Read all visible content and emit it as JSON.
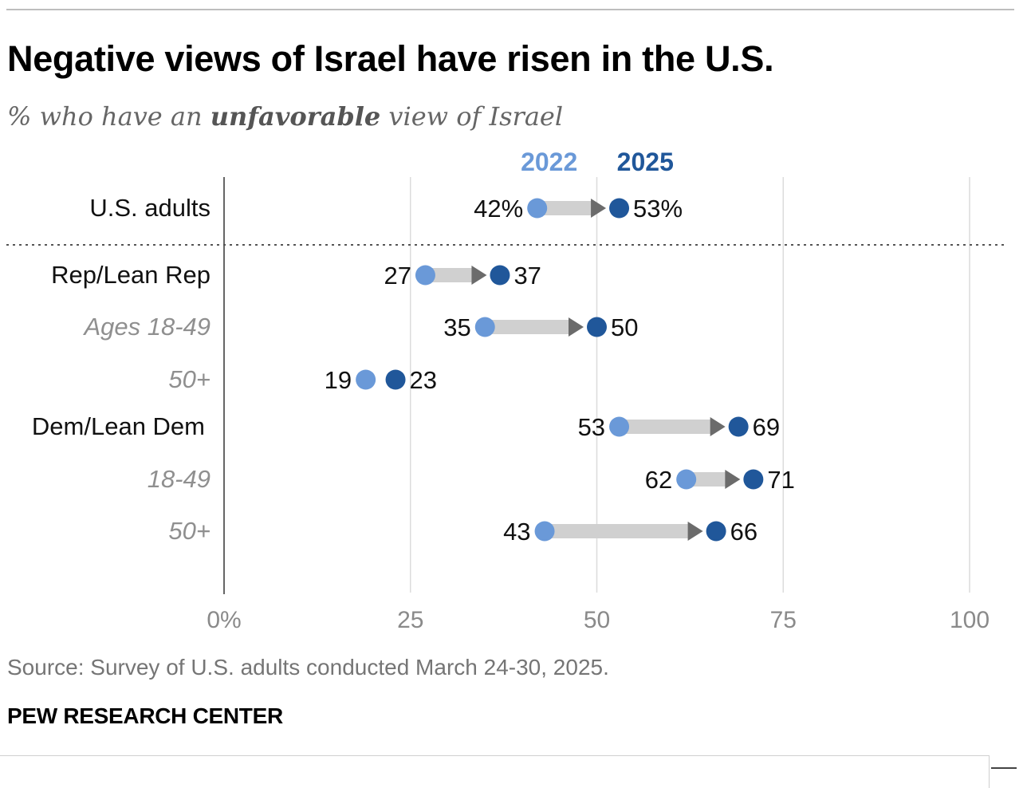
{
  "title": "Negative views of Israel have risen in the U.S.",
  "subtitle": {
    "prefix": "% who have an ",
    "emphasis": "unfavorable",
    "suffix": " view of Israel"
  },
  "source": "Source: Survey of U.S. adults conducted March 24-30, 2025.",
  "brand": "PEW RESEARCH CENTER",
  "colors": {
    "y2022": "#6a99d8",
    "y2025": "#20579a",
    "arrow": "#d0d0d0",
    "arrowhead": "#6b6b6b",
    "grid": "#dcdcdc",
    "axis": "#333333",
    "tick": "#8a8a8a"
  },
  "chart_data": {
    "type": "dumbbell",
    "series": [
      {
        "name": "2022"
      },
      {
        "name": "2025"
      }
    ],
    "xlim": [
      0,
      100
    ],
    "xticks": [
      "0%",
      "25",
      "50",
      "75",
      "100"
    ],
    "xtick_values": [
      0,
      25,
      50,
      75,
      100
    ],
    "grid": true,
    "rows": [
      {
        "label": "U.S. adults",
        "style": "main",
        "v2022": 42,
        "v2025": 53,
        "label2022": "42%",
        "label2025": "53%"
      },
      {
        "label": "Rep/Lean Rep",
        "style": "main",
        "v2022": 27,
        "v2025": 37,
        "label2022": "27",
        "label2025": "37"
      },
      {
        "label": "Ages 18-49",
        "style": "sub",
        "v2022": 35,
        "v2025": 50,
        "label2022": "35",
        "label2025": "50"
      },
      {
        "label": "50+",
        "style": "sub",
        "v2022": 19,
        "v2025": 23,
        "label2022": "19",
        "label2025": "23"
      },
      {
        "label": "Dem/Lean Dem",
        "style": "main",
        "v2022": 53,
        "v2025": 69,
        "label2022": "53",
        "label2025": "69"
      },
      {
        "label": "18-49",
        "style": "sub",
        "v2022": 62,
        "v2025": 71,
        "label2022": "62",
        "label2025": "71"
      },
      {
        "label": "50+",
        "style": "sub",
        "v2022": 43,
        "v2025": 66,
        "label2022": "43",
        "label2025": "66"
      }
    ]
  }
}
